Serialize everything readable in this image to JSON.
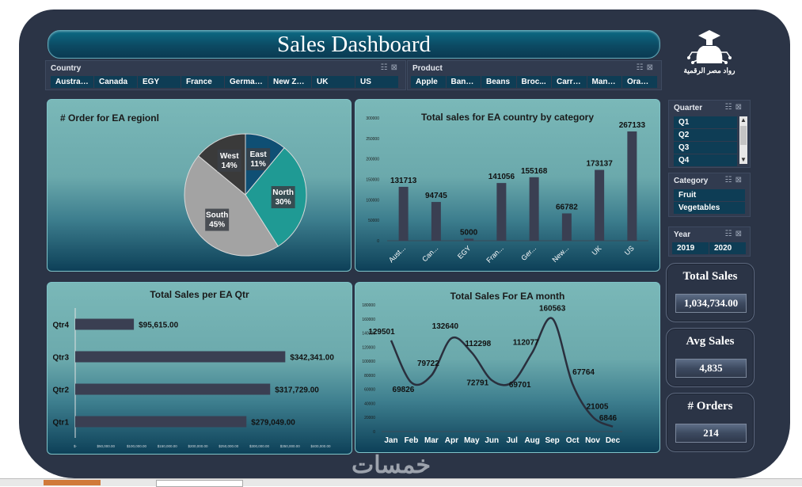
{
  "dashboard": {
    "title": "Sales Dashboard",
    "logo_text": "رواد مصر الرقمية",
    "watermark": "خمسات"
  },
  "slicers": {
    "country": {
      "title": "Country",
      "items": [
        "Australia",
        "Canada",
        "EGY",
        "France",
        "Germany",
        "New Ze...",
        "UK",
        "US"
      ]
    },
    "product": {
      "title": "Product",
      "items": [
        "Apple",
        "Bana...",
        "Beans",
        "Broc...",
        "Carrots",
        "Mango",
        "Orange"
      ]
    },
    "quarter": {
      "title": "Quarter",
      "items": [
        "Q1",
        "Q2",
        "Q3",
        "Q4"
      ]
    },
    "category": {
      "title": "Category",
      "items": [
        "Fruit",
        "Vegetables"
      ]
    },
    "year": {
      "title": "Year",
      "items": [
        "2019",
        "2020"
      ]
    }
  },
  "kpis": {
    "total_sales": {
      "title": "Total Sales",
      "value": "1,034,734.00"
    },
    "avg_sales": {
      "title": "Avg Sales",
      "value": "4,835"
    },
    "orders": {
      "title": "# Orders",
      "value": "214"
    }
  },
  "chart_data": [
    {
      "id": "orders-by-region",
      "type": "pie",
      "title": "# Order for EA regionl",
      "slices": [
        {
          "label": "East",
          "value": 11,
          "display": "11%",
          "color": "#0f4f74"
        },
        {
          "label": "North",
          "value": 30,
          "display": "30%",
          "color": "#1f9a94"
        },
        {
          "label": "South",
          "value": 45,
          "display": "45%",
          "color": "#a3a3a3"
        },
        {
          "label": "West",
          "value": 14,
          "display": "14%",
          "color": "#3a3a3a"
        }
      ]
    },
    {
      "id": "sales-by-country",
      "type": "bar",
      "title": "Total sales for EA country by category",
      "categories": [
        "Aust...",
        "Can...",
        "EGY",
        "Fran...",
        "Ger...",
        "New...",
        "UK",
        "US"
      ],
      "values": [
        131713,
        94745,
        5000,
        141056,
        155168,
        66782,
        173137,
        267133
      ],
      "labels": [
        "131713",
        "94745",
        "5000",
        "141056",
        "155168",
        "66782",
        "173137",
        "267133"
      ],
      "ylim": [
        0,
        300000
      ],
      "yticks": [
        "0",
        "50000",
        "100000",
        "150000",
        "200000",
        "250000",
        "300000"
      ]
    },
    {
      "id": "sales-by-quarter",
      "type": "bar",
      "orientation": "horizontal",
      "title": "Total Sales per EA Qtr",
      "categories": [
        "Qtr4",
        "Qtr3",
        "Qtr2",
        "Qtr1"
      ],
      "values": [
        95615,
        342341,
        317729,
        279049
      ],
      "labels": [
        "$95,615.00",
        "$342,341.00",
        "$317,729.00",
        "$279,049.00"
      ],
      "xlim": [
        0,
        400000
      ],
      "xticks": [
        "$-",
        "$50,000.00",
        "$100,000.00",
        "$150,000.00",
        "$200,000.00",
        "$250,000.00",
        "$300,000.00",
        "$350,000.00",
        "$400,000.00"
      ]
    },
    {
      "id": "sales-by-month",
      "type": "line",
      "title": "Total Sales For EA month",
      "categories": [
        "Jan",
        "Feb",
        "Mar",
        "Apr",
        "May",
        "Jun",
        "Jul",
        "Aug",
        "Sep",
        "Oct",
        "Nov",
        "Dec"
      ],
      "values": [
        129501,
        69826,
        79722,
        132640,
        112298,
        72791,
        69701,
        112077,
        160563,
        67764,
        21005,
        6846
      ],
      "labels": [
        "129501",
        "69826",
        "79722",
        "132640",
        "112298",
        "72791",
        "69701",
        "112077",
        "160563",
        "67764",
        "21005",
        "6846"
      ],
      "ylim": [
        0,
        180000
      ],
      "yticks": [
        "0",
        "20000",
        "40000",
        "60000",
        "80000",
        "100000",
        "120000",
        "140000",
        "160000",
        "180000"
      ]
    }
  ]
}
